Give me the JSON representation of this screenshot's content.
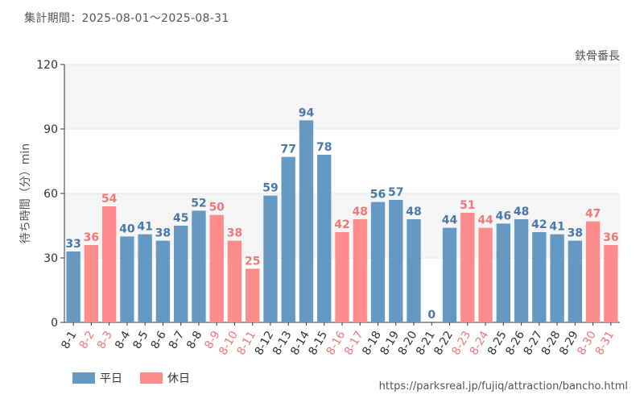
{
  "header": {
    "period": "集計期間：2025-08-01～2025-08-31",
    "attraction": "鉄骨番長"
  },
  "footer": {
    "credit": "https://parksreal.jp/fujiq/attraction/bancho.html"
  },
  "colors": {
    "weekday": "#6699c2",
    "holiday": "#ff8c8c",
    "weekday_text": "#4a78a6",
    "holiday_text": "#f07878",
    "band": "#f5f5f5",
    "grid": "#e6e6e6"
  },
  "chart_data": {
    "type": "bar",
    "ylabel": "待ち時間（分）min",
    "ylim": [
      0,
      120
    ],
    "yticks": [
      0,
      30,
      60,
      90,
      120
    ],
    "grid": true,
    "legend_position": "bottom-left",
    "categories": [
      "8-1",
      "8-2",
      "8-3",
      "8-4",
      "8-5",
      "8-6",
      "8-7",
      "8-8",
      "8-9",
      "8-10",
      "8-11",
      "8-12",
      "8-13",
      "8-14",
      "8-15",
      "8-16",
      "8-17",
      "8-18",
      "8-19",
      "8-20",
      "8-21",
      "8-22",
      "8-23",
      "8-24",
      "8-25",
      "8-26",
      "8-27",
      "8-28",
      "8-29",
      "8-30",
      "8-31"
    ],
    "values": [
      33,
      36,
      54,
      40,
      41,
      38,
      45,
      52,
      50,
      38,
      25,
      59,
      77,
      94,
      78,
      42,
      48,
      56,
      57,
      48,
      0,
      44,
      51,
      44,
      46,
      48,
      42,
      41,
      38,
      47,
      36
    ],
    "series_assignment": [
      "平日",
      "休日",
      "休日",
      "平日",
      "平日",
      "平日",
      "平日",
      "平日",
      "休日",
      "休日",
      "休日",
      "平日",
      "平日",
      "平日",
      "平日",
      "休日",
      "休日",
      "平日",
      "平日",
      "平日",
      "平日",
      "平日",
      "休日",
      "休日",
      "平日",
      "平日",
      "平日",
      "平日",
      "平日",
      "休日",
      "休日"
    ],
    "series": [
      {
        "name": "平日",
        "color": "#6699c2"
      },
      {
        "name": "休日",
        "color": "#ff8c8c"
      }
    ]
  }
}
